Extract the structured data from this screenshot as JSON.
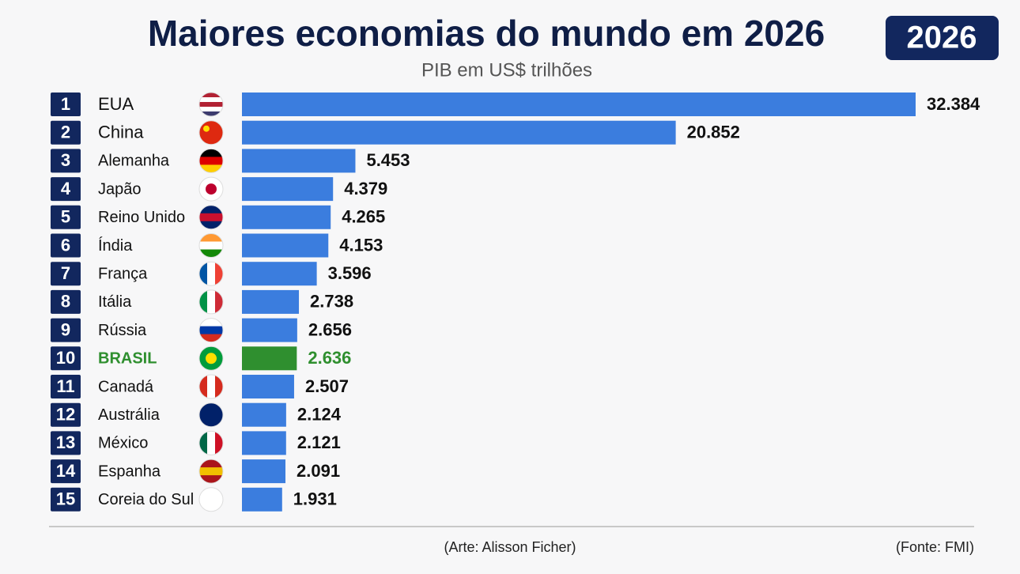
{
  "chart_data": {
    "type": "hbar",
    "title": "Maiores economias do mundo em 2026",
    "subtitle": "PIB em US$ trilhões",
    "badge": "2026",
    "ranks": [
      1,
      2,
      3,
      4,
      5,
      6,
      7,
      8,
      9,
      10,
      11,
      12,
      13,
      14,
      15
    ],
    "categories": [
      "EUA",
      "China",
      "Alemanha",
      "Japão",
      "Reino Unido",
      "Índia",
      "França",
      "Itália",
      "Rússia",
      "BRASIL",
      "Canadá",
      "Austrália",
      "México",
      "Espanha",
      "Coreia do Sul"
    ],
    "values": [
      32.384,
      20.852,
      5.453,
      4.379,
      4.265,
      4.153,
      3.596,
      2.738,
      2.656,
      2.636,
      2.507,
      2.124,
      2.121,
      2.091,
      1.931
    ],
    "color": "#3b7dde",
    "highlight_index": 9,
    "highlight_color": "#2f8f2f",
    "credit": "(Arte: Alisson Ficher)",
    "source": "(Fonte: FMI)"
  }
}
